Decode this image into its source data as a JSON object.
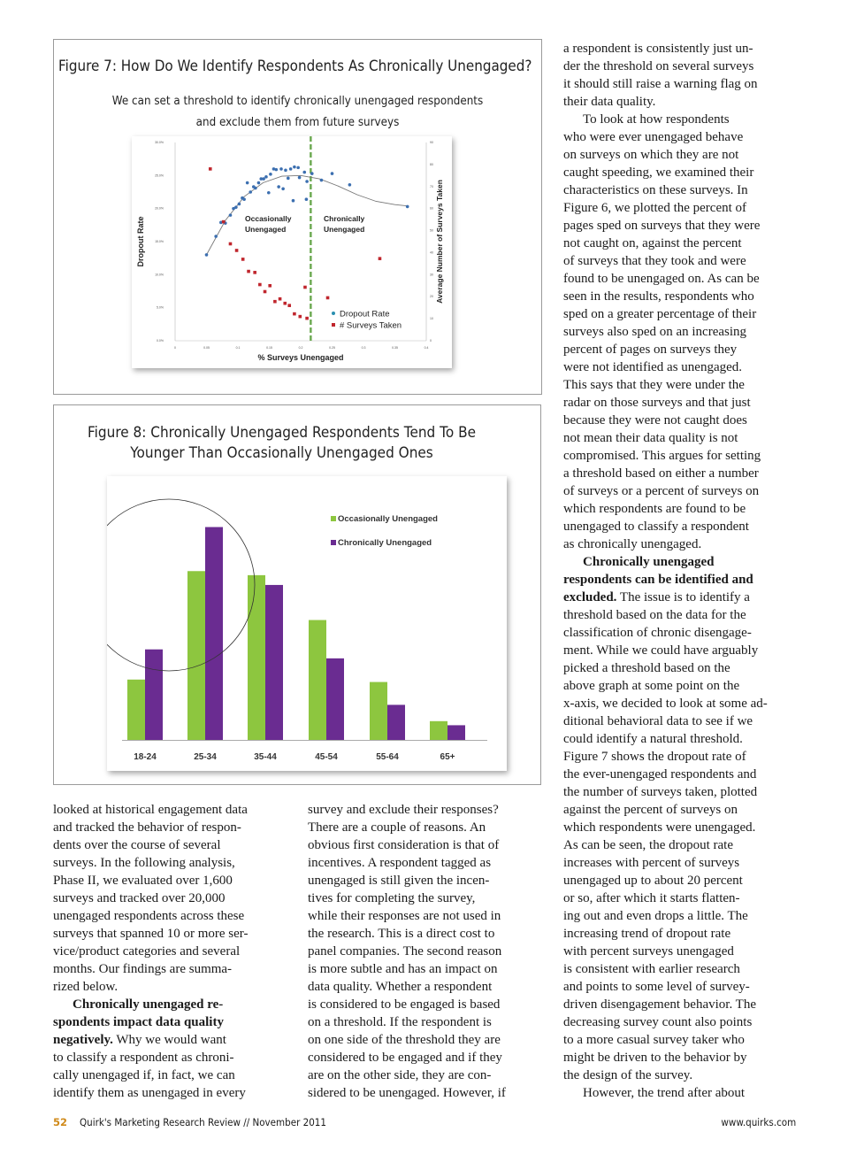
{
  "figure7": {
    "title": "Figure 7: How Do We Identify Respondents As Chronically Unengaged?",
    "subtitle_lines": [
      "We can set a threshold to identify chronically unengaged respondents",
      "and exclude them from future surveys"
    ],
    "chart_data": {
      "type": "scatter",
      "xlabel": "% Surveys Unengaged",
      "ylabel": "Dropout Rate",
      "y2label": "Average Number of Surveys Taken",
      "xlim": [
        0,
        0.4
      ],
      "ylim": [
        0,
        30
      ],
      "y2lim": [
        0,
        90
      ],
      "x_ticks": [
        "0",
        "0.05",
        "0.1",
        "0.15",
        "0.2",
        "0.25",
        "0.3",
        "0.35",
        "0.4"
      ],
      "y_ticks": [
        "0.0%",
        "5.0%",
        "10.0%",
        "15.0%",
        "20.0%",
        "25.0%",
        "30.0%"
      ],
      "y2_ticks": [
        "0",
        "10",
        "20",
        "30",
        "40",
        "50",
        "60",
        "70",
        "80",
        "90"
      ],
      "threshold_x": 0.216,
      "region_labels": [
        [
          "Occasionally",
          "Unengaged"
        ],
        [
          "Chronically",
          "Unengaged"
        ]
      ],
      "legend": [
        "Dropout Rate",
        "# Surveys Taken"
      ],
      "colors": {
        "dropout": "#3c6fb0",
        "surveys": "#c0262d",
        "threshold": "#6aa84f",
        "trend": "#777777"
      },
      "series": [
        {
          "name": "Dropout Rate",
          "axis": "left",
          "points": [
            [
              0.05,
              13.0
            ],
            [
              0.065,
              15.8
            ],
            [
              0.073,
              17.9
            ],
            [
              0.08,
              17.8
            ],
            [
              0.088,
              19.0
            ],
            [
              0.093,
              20.0
            ],
            [
              0.097,
              20.2
            ],
            [
              0.102,
              20.7
            ],
            [
              0.107,
              21.6
            ],
            [
              0.11,
              21.4
            ],
            [
              0.115,
              23.9
            ],
            [
              0.12,
              22.5
            ],
            [
              0.125,
              23.3
            ],
            [
              0.128,
              23.1
            ],
            [
              0.133,
              23.9
            ],
            [
              0.137,
              24.5
            ],
            [
              0.141,
              24.5
            ],
            [
              0.145,
              24.8
            ],
            [
              0.149,
              22.4
            ],
            [
              0.152,
              25.2
            ],
            [
              0.157,
              26.0
            ],
            [
              0.161,
              25.9
            ],
            [
              0.165,
              23.3
            ],
            [
              0.169,
              26.0
            ],
            [
              0.172,
              23.0
            ],
            [
              0.176,
              25.8
            ],
            [
              0.18,
              24.6
            ],
            [
              0.184,
              26.0
            ],
            [
              0.188,
              21.2
            ],
            [
              0.19,
              26.3
            ],
            [
              0.196,
              26.2
            ],
            [
              0.198,
              24.7
            ],
            [
              0.206,
              25.5
            ],
            [
              0.209,
              21.4
            ],
            [
              0.21,
              24.1
            ],
            [
              0.218,
              25.3
            ],
            [
              0.233,
              24.3
            ],
            [
              0.25,
              25.3
            ],
            [
              0.278,
              23.6
            ],
            [
              0.37,
              20.3
            ]
          ]
        },
        {
          "name": "# Surveys Taken",
          "axis": "right",
          "points": [
            [
              0.056,
              78
            ],
            [
              0.077,
              54
            ],
            [
              0.088,
              44
            ],
            [
              0.098,
              41
            ],
            [
              0.108,
              37
            ],
            [
              0.117,
              31.5
            ],
            [
              0.127,
              31
            ],
            [
              0.135,
              25.5
            ],
            [
              0.143,
              22.3
            ],
            [
              0.151,
              25
            ],
            [
              0.159,
              17.8
            ],
            [
              0.167,
              19
            ],
            [
              0.175,
              17
            ],
            [
              0.182,
              16
            ],
            [
              0.19,
              12.2
            ],
            [
              0.199,
              11
            ],
            [
              0.207,
              24.3
            ],
            [
              0.21,
              10.2
            ],
            [
              0.243,
              19.5
            ],
            [
              0.326,
              37.3
            ]
          ]
        }
      ],
      "trend": [
        [
          0.05,
          13.0
        ],
        [
          0.08,
          18.2
        ],
        [
          0.11,
          21.8
        ],
        [
          0.14,
          23.9
        ],
        [
          0.17,
          24.9
        ],
        [
          0.2,
          25.0
        ],
        [
          0.23,
          24.5
        ],
        [
          0.26,
          23.4
        ],
        [
          0.29,
          22.1
        ],
        [
          0.32,
          21.1
        ],
        [
          0.35,
          20.6
        ],
        [
          0.37,
          20.4
        ]
      ]
    }
  },
  "figure8": {
    "title_lines": [
      "Figure 8: Chronically Unengaged Respondents Tend To Be",
      "Younger Than Occasionally Unengaged Ones"
    ],
    "chart_data": {
      "type": "bar",
      "categories": [
        "18-24",
        "25-34",
        "35-44",
        "45-54",
        "55-64",
        "65+"
      ],
      "series": [
        {
          "name": "Occasionally Unengaged",
          "color": "#8dc63f",
          "values": [
            74,
            207,
            202,
            147,
            71,
            23
          ]
        },
        {
          "name": "Chronically Unengaged",
          "color": "#6a2c91",
          "values": [
            111,
            261,
            190,
            100,
            43,
            18
          ]
        }
      ],
      "ylim": [
        0,
        280
      ],
      "note": "relative heights; no value axis shown",
      "legend": "top-right"
    }
  },
  "columns": {
    "left": [
      "looked at historical engagement data",
      "and tracked the behavior of respon-",
      "dents over the course of several",
      "surveys. In the following analysis,",
      "Phase II, we evaluated over 1,600",
      "surveys and tracked over 20,000",
      "unengaged respondents across these",
      "surveys that spanned 10 or more ser-",
      "vice/product categories and several",
      "months. Our findings are summa-",
      "rized below.",
      {
        "b": "Chronically unengaged re-",
        "ind": true
      },
      {
        "b": "spondents impact data quality"
      },
      {
        "b": "negatively.",
        "t": " Why we would want"
      },
      "to classify a respondent as chroni-",
      "cally unengaged if, in fact, we can",
      "identify them as unengaged in every"
    ],
    "middle": [
      "survey and exclude their responses?",
      "There are a couple of reasons. An",
      "obvious first consideration is that of",
      "incentives. A respondent tagged as",
      "unengaged is still given the incen-",
      "tives for completing the survey,",
      "while their responses are not used in",
      "the research. This is a direct cost to",
      "panel companies. The second reason",
      "is more subtle and has an impact on",
      "data quality. Whether a respondent",
      "is considered to be engaged is based",
      "on a threshold. If the respondent is",
      "on one side of the threshold they are",
      "considered to be engaged and if they",
      "are on the other side, they are con-",
      "sidered to be unengaged. However, if"
    ],
    "right": [
      "a respondent is consistently just un-",
      "der the threshold on several surveys",
      "it should still raise a warning flag on",
      "their data quality.",
      {
        "t": "To look at how respondents",
        "ind": true
      },
      "who were ever unengaged behave",
      "on surveys on which they are not",
      "caught speeding, we examined their",
      "characteristics on these surveys. In",
      "Figure 6, we plotted the percent of",
      "pages sped on surveys that they were",
      "not caught on, against the percent",
      "of surveys that they took and were",
      "found to be unengaged on. As can be",
      "seen in the results, respondents who",
      "sped on a greater percentage of their",
      "surveys also sped on an increasing",
      "percent of pages on surveys they",
      "were not identified as unengaged.",
      "This says that they were under the",
      "radar on those surveys and that just",
      "because they were not caught does",
      "not mean their data quality is not",
      "compromised. This argues for setting",
      "a threshold based on either a number",
      "of surveys or a percent of surveys on",
      "which respondents are found to be",
      "unengaged to classify a respondent",
      "as chronically unengaged.",
      {
        "b": "Chronically unengaged",
        "ind": true
      },
      {
        "b": "respondents can be identified and"
      },
      {
        "b": "excluded.",
        "t": " The issue is to identify a"
      },
      "threshold based on the data for the",
      "classification of chronic disengage-",
      "ment. While we could have arguably",
      "picked a threshold based on the",
      "above graph at some point on the",
      "x-axis, we decided to look at some ad-",
      "ditional behavioral data to see if we",
      "could identify a natural threshold.",
      "Figure 7 shows the dropout rate of",
      "the ever-unengaged respondents and",
      "the number of surveys taken, plotted",
      "against the percent of surveys on",
      "which respondents were unengaged.",
      "As can be seen, the dropout rate",
      "increases with percent of surveys",
      "unengaged up to about 20 percent",
      "or so, after which it starts flatten-",
      "ing out and even drops a little. The",
      "increasing trend of dropout rate",
      "with percent surveys unengaged",
      "is consistent with earlier research",
      "and points to some level of survey-",
      "driven disengagement behavior. The",
      "decreasing survey count also points",
      "to a more casual survey taker who",
      "might be driven to the behavior by",
      "the design of the survey.",
      {
        "t": "However, the trend after about",
        "ind": true
      }
    ]
  },
  "footer": {
    "page_number": "52",
    "publication": "Quirk's Marketing Research Review // November 2011",
    "website": "www.quirks.com"
  }
}
